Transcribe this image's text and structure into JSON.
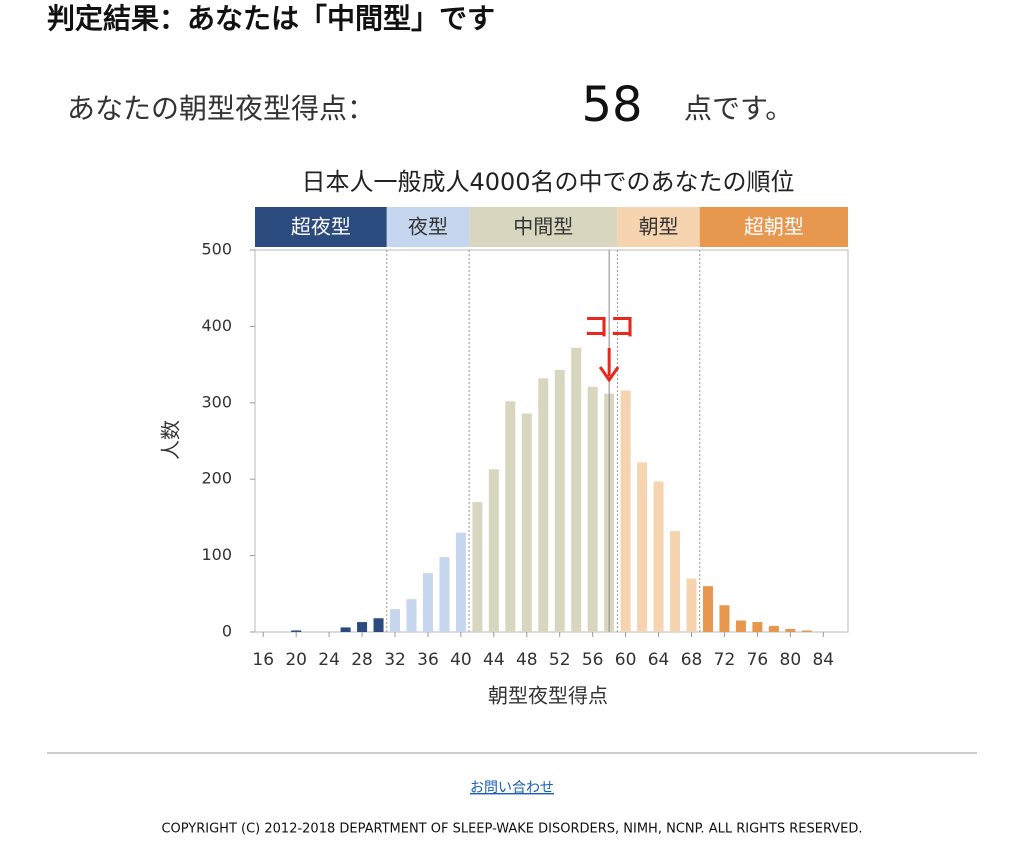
{
  "header": {
    "title": "判定結果：あなたは「中間型」です"
  },
  "score": {
    "prefix": "あなたの朝型夜型得点：",
    "value": 58,
    "suffix": "点です。"
  },
  "chart_data": {
    "type": "bar",
    "title": "日本人一般成人4000名の中でのあなたの順位",
    "xlabel": "朝型夜型得点",
    "ylabel": "人数",
    "x": [
      16,
      18,
      20,
      22,
      24,
      26,
      28,
      30,
      32,
      34,
      36,
      38,
      40,
      42,
      44,
      46,
      48,
      50,
      52,
      54,
      56,
      58,
      60,
      62,
      64,
      66,
      68,
      70,
      72,
      74,
      76,
      78,
      80,
      82,
      84
    ],
    "values": [
      0,
      0,
      2,
      0,
      0,
      6,
      13,
      18,
      30,
      43,
      77,
      98,
      130,
      170,
      213,
      302,
      286,
      332,
      343,
      372,
      321,
      312,
      316,
      222,
      197,
      132,
      70,
      60,
      35,
      15,
      13,
      8,
      4,
      2,
      0
    ],
    "xlim": [
      15,
      87
    ],
    "xticks": [
      16,
      20,
      24,
      28,
      32,
      36,
      40,
      44,
      48,
      52,
      56,
      60,
      64,
      68,
      72,
      76,
      80,
      84
    ],
    "ylim": [
      0,
      500
    ],
    "yticks": [
      0,
      100,
      200,
      300,
      400,
      500
    ],
    "bands": [
      {
        "name": "超夜型",
        "color": "#2b4a7e",
        "text_color": "#ffffff",
        "range": [
          15,
          31
        ]
      },
      {
        "name": "夜型",
        "color": "#c5d6ee",
        "text_color": "#333333",
        "range": [
          31,
          41
        ]
      },
      {
        "name": "中間型",
        "color": "#d9d6c0",
        "text_color": "#333333",
        "range": [
          41,
          59
        ]
      },
      {
        "name": "朝型",
        "color": "#f7d4b0",
        "text_color": "#333333",
        "range": [
          59,
          69
        ]
      },
      {
        "name": "超朝型",
        "color": "#e8974f",
        "text_color": "#ffffff",
        "range": [
          69,
          87
        ]
      }
    ],
    "marker": {
      "label": "ココ",
      "color": "#e8281e"
    }
  },
  "footer": {
    "link": "お問い合わせ",
    "copyright": "COPYRIGHT (C) 2012-2018 DEPARTMENT OF SLEEP-WAKE DISORDERS, NIMH, NCNP. ALL RIGHTS RESERVED."
  }
}
